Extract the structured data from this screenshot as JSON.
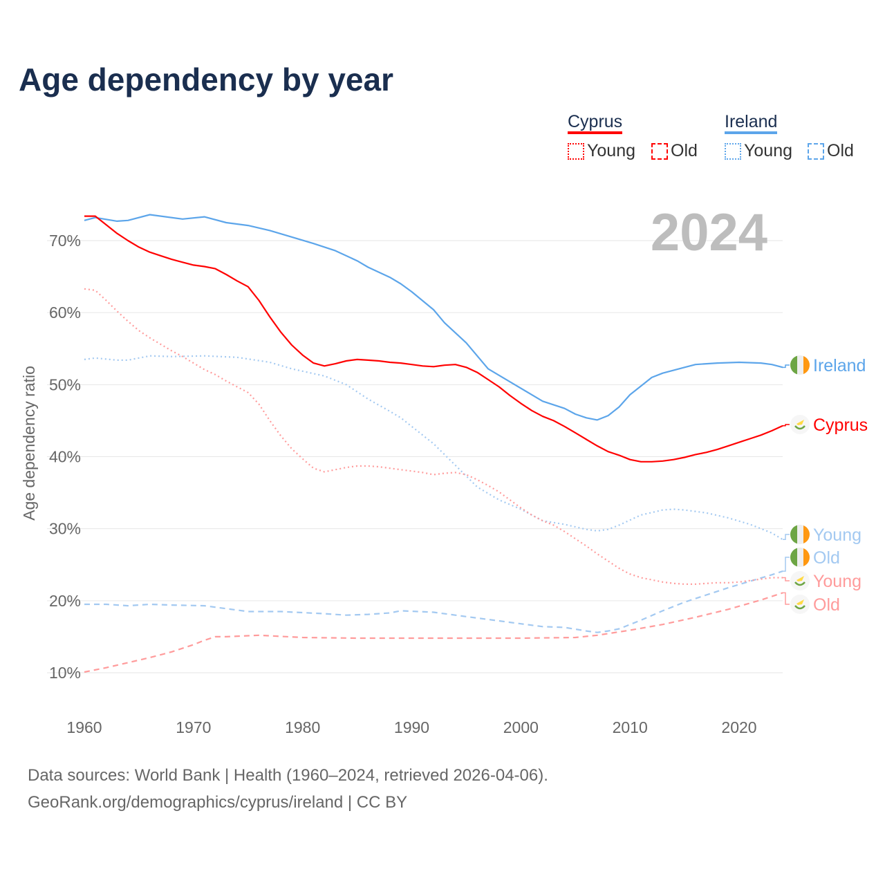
{
  "title": "Age dependency by year",
  "year_badge": "2024",
  "legend": {
    "cyprus": {
      "name": "Cyprus",
      "young": "Young",
      "old": "Old"
    },
    "ireland": {
      "name": "Ireland",
      "young": "Young",
      "old": "Old"
    }
  },
  "end_labels": {
    "ireland": "Ireland",
    "cyprus": "Cyprus",
    "ireland_young": "Young",
    "ireland_old": "Old",
    "cyprus_young": "Young",
    "cyprus_old": "Old"
  },
  "footer": {
    "line1": "Data sources: World Bank | Health (1960–2024, retrieved 2026-04-06).",
    "line2": "GeoRank.org/demographics/cyprus/ireland | CC BY"
  },
  "colors": {
    "cyprus": "#ff0000",
    "cyprus_light": "#ff9b9b",
    "ireland": "#5ca5ea",
    "ireland_light": "#a3c9f1"
  },
  "chart_data": {
    "type": "line",
    "title": "Age dependency by year",
    "xlabel": "",
    "ylabel": "Age dependency ratio",
    "xlim": [
      1960,
      2024
    ],
    "ylim": [
      5,
      75
    ],
    "xticks": [
      "1960",
      "1970",
      "1980",
      "1990",
      "2000",
      "2010",
      "2020"
    ],
    "yticks": [
      "10%",
      "20%",
      "30%",
      "40%",
      "50%",
      "60%",
      "70%"
    ],
    "grid": true,
    "legend_position": "top-right",
    "series": [
      {
        "key": "ireland",
        "name": "Ireland",
        "style": "solid",
        "x": [
          1960,
          1961,
          1963,
          1964,
          1966,
          1969,
          1971,
          1973,
          1975,
          1977,
          1979,
          1981,
          1983,
          1985,
          1986,
          1988,
          1989,
          1990,
          1992,
          1993,
          1995,
          1996,
          1997,
          1999,
          2001,
          2002,
          2004,
          2005,
          2006,
          2007,
          2008,
          2009,
          2010,
          2011,
          2012,
          2013,
          2015,
          2016,
          2018,
          2020,
          2022,
          2023,
          2024
        ],
        "values": [
          72.8,
          73.2,
          72.7,
          72.8,
          73.6,
          73.0,
          73.3,
          72.5,
          72.1,
          71.4,
          70.5,
          69.6,
          68.6,
          67.2,
          66.3,
          64.9,
          64.0,
          62.9,
          60.4,
          58.6,
          55.8,
          54.0,
          52.2,
          50.4,
          48.6,
          47.7,
          46.7,
          45.9,
          45.4,
          45.1,
          45.7,
          46.9,
          48.6,
          49.8,
          51.0,
          51.6,
          52.4,
          52.8,
          53.0,
          53.1,
          53.0,
          52.8,
          52.4
        ]
      },
      {
        "key": "cyprus",
        "name": "Cyprus",
        "style": "solid",
        "x": [
          1960,
          1961,
          1962,
          1963,
          1964,
          1965,
          1966,
          1967,
          1968,
          1969,
          1970,
          1971,
          1972,
          1973,
          1974,
          1975,
          1976,
          1977,
          1978,
          1979,
          1980,
          1981,
          1982,
          1983,
          1984,
          1985,
          1986,
          1987,
          1988,
          1989,
          1990,
          1991,
          1992,
          1993,
          1994,
          1995,
          1996,
          1997,
          1998,
          1999,
          2000,
          2001,
          2002,
          2003,
          2004,
          2005,
          2006,
          2007,
          2008,
          2009,
          2010,
          2011,
          2012,
          2013,
          2014,
          2015,
          2016,
          2017,
          2018,
          2019,
          2020,
          2021,
          2022,
          2023,
          2024
        ],
        "values": [
          73.4,
          73.4,
          72.2,
          71.0,
          70.0,
          69.1,
          68.4,
          67.9,
          67.4,
          67.0,
          66.6,
          66.4,
          66.1,
          65.3,
          64.4,
          63.6,
          61.7,
          59.4,
          57.3,
          55.5,
          54.1,
          53.0,
          52.6,
          52.9,
          53.3,
          53.5,
          53.4,
          53.3,
          53.1,
          53.0,
          52.8,
          52.6,
          52.5,
          52.7,
          52.8,
          52.4,
          51.7,
          50.7,
          49.7,
          48.5,
          47.4,
          46.4,
          45.6,
          45.0,
          44.2,
          43.3,
          42.4,
          41.5,
          40.7,
          40.2,
          39.6,
          39.3,
          39.3,
          39.4,
          39.6,
          39.9,
          40.3,
          40.6,
          41.0,
          41.5,
          42.0,
          42.5,
          43.0,
          43.6,
          44.3
        ]
      },
      {
        "key": "ireland_young",
        "name": "Ireland Young",
        "style": "dotted",
        "x": [
          1960,
          1961,
          1963,
          1964,
          1966,
          1968,
          1971,
          1974,
          1977,
          1979,
          1982,
          1984,
          1986,
          1988,
          1989,
          1991,
          1992,
          1993,
          1995,
          1996,
          1998,
          2000,
          2002,
          2004,
          2006,
          2007,
          2008,
          2009,
          2011,
          2013,
          2014,
          2015,
          2017,
          2019,
          2021,
          2023,
          2024
        ],
        "values": [
          53.5,
          53.7,
          53.4,
          53.4,
          54.0,
          53.9,
          54.0,
          53.8,
          53.1,
          52.2,
          51.2,
          50.0,
          48.0,
          46.3,
          45.4,
          43.0,
          41.8,
          40.3,
          37.3,
          35.8,
          34.0,
          32.7,
          31.1,
          30.6,
          29.9,
          29.7,
          29.9,
          30.5,
          31.9,
          32.6,
          32.7,
          32.6,
          32.2,
          31.5,
          30.6,
          29.4,
          28.5
        ]
      },
      {
        "key": "ireland_old",
        "name": "Ireland Old",
        "style": "dashed",
        "x": [
          1960,
          1962,
          1964,
          1966,
          1968,
          1971,
          1973,
          1975,
          1978,
          1982,
          1984,
          1986,
          1988,
          1989,
          1992,
          1995,
          1998,
          2000,
          2002,
          2004,
          2006,
          2007,
          2008,
          2009,
          2011,
          2013,
          2015,
          2017,
          2019,
          2021,
          2023,
          2024
        ],
        "values": [
          19.5,
          19.5,
          19.3,
          19.5,
          19.4,
          19.3,
          18.9,
          18.5,
          18.5,
          18.2,
          18.0,
          18.1,
          18.3,
          18.6,
          18.4,
          17.8,
          17.2,
          16.8,
          16.4,
          16.3,
          15.8,
          15.6,
          15.8,
          16.1,
          17.3,
          18.6,
          19.8,
          20.8,
          21.8,
          22.7,
          23.6,
          24.1
        ]
      },
      {
        "key": "cyprus_young",
        "name": "Cyprus Young",
        "style": "dotted",
        "x": [
          1960,
          1961,
          1962,
          1963,
          1964,
          1965,
          1966,
          1967,
          1968,
          1969,
          1970,
          1971,
          1972,
          1973,
          1974,
          1975,
          1976,
          1977,
          1978,
          1979,
          1980,
          1981,
          1982,
          1983,
          1984,
          1985,
          1986,
          1987,
          1988,
          1989,
          1990,
          1991,
          1992,
          1993,
          1994,
          1995,
          1996,
          1997,
          1998,
          1999,
          2000,
          2001,
          2002,
          2003,
          2004,
          2005,
          2006,
          2007,
          2008,
          2009,
          2010,
          2011,
          2012,
          2013,
          2014,
          2015,
          2016,
          2017,
          2018,
          2019,
          2020,
          2021,
          2022,
          2023,
          2024
        ],
        "values": [
          63.3,
          63.1,
          61.7,
          60.2,
          58.8,
          57.5,
          56.5,
          55.6,
          54.7,
          53.9,
          53.0,
          52.1,
          51.4,
          50.5,
          49.7,
          48.9,
          47.3,
          45.0,
          42.9,
          41.1,
          39.7,
          38.4,
          37.9,
          38.2,
          38.5,
          38.7,
          38.7,
          38.6,
          38.4,
          38.2,
          38.0,
          37.8,
          37.5,
          37.7,
          37.8,
          37.5,
          36.8,
          36.0,
          35.1,
          34.0,
          32.9,
          31.9,
          31.1,
          30.5,
          29.6,
          28.6,
          27.6,
          26.5,
          25.5,
          24.5,
          23.7,
          23.2,
          22.9,
          22.6,
          22.4,
          22.3,
          22.3,
          22.4,
          22.5,
          22.5,
          22.6,
          22.8,
          23.0,
          23.2,
          23.2
        ]
      },
      {
        "key": "cyprus_old",
        "name": "Cyprus Old",
        "style": "dashed",
        "x": [
          1960,
          1962,
          1964,
          1966,
          1968,
          1970,
          1971,
          1972,
          1973,
          1976,
          1980,
          1985,
          1990,
          1995,
          2000,
          2005,
          2007,
          2010,
          2013,
          2016,
          2019,
          2022,
          2024
        ],
        "values": [
          10.1,
          10.7,
          11.4,
          12.1,
          12.9,
          13.9,
          14.5,
          15.0,
          15.0,
          15.2,
          14.9,
          14.8,
          14.8,
          14.8,
          14.8,
          14.9,
          15.2,
          15.9,
          16.7,
          17.7,
          18.8,
          20.1,
          21.1
        ]
      }
    ]
  }
}
